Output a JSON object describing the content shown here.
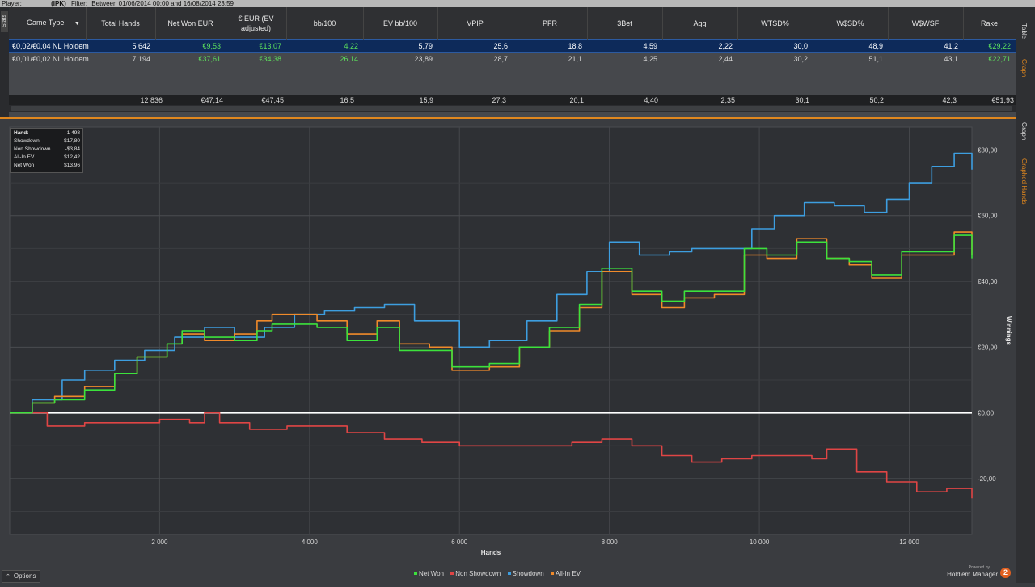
{
  "topbar": {
    "player_label": "Player:",
    "player_value": "(IPK)",
    "filter_label": "Filter:",
    "filter_value": "Between 01/06/2014 00:00 and 16/08/2014 23:59"
  },
  "left_tab": {
    "label": "Stats"
  },
  "right_tabs": {
    "table": "Table",
    "graph_top": "Graph",
    "graph": "Graph",
    "graphed_hands": "Graphed Hands"
  },
  "stats_table": {
    "columns": [
      "Game Type",
      "Total Hands",
      "Net Won EUR",
      "€ EUR (EV adjusted)",
      "bb/100",
      "EV bb/100",
      "VPIP",
      "PFR",
      "3Bet",
      "Agg",
      "WTSD%",
      "W$SD%",
      "W$WSF",
      "Rake"
    ],
    "rows": [
      [
        "€0,02/€0,04 NL Holdem",
        "5 642",
        "€9,53",
        "€13,07",
        "4,22",
        "5,79",
        "25,6",
        "18,8",
        "4,59",
        "2,22",
        "30,0",
        "48,9",
        "41,2",
        "€29,22"
      ],
      [
        "€0,01/€0,02 NL Holdem",
        "7 194",
        "€37,61",
        "€34,38",
        "26,14",
        "23,89",
        "28,7",
        "21,1",
        "4,25",
        "2,44",
        "30,2",
        "51,1",
        "43,1",
        "€22,71"
      ]
    ],
    "totals": [
      "12 836",
      "€47,14",
      "€47,45",
      "16,5",
      "15,9",
      "27,3",
      "20,1",
      "4,40",
      "2,35",
      "30,1",
      "50,2",
      "42,3",
      "€51,93"
    ]
  },
  "tooltip": {
    "rows": [
      {
        "label": "Hand:",
        "value": "1 498"
      },
      {
        "label": "Showdown",
        "value": "$17,80"
      },
      {
        "label": "Non Showdown",
        "value": "-$3,84"
      },
      {
        "label": "All-In EV",
        "value": "$12,42"
      },
      {
        "label": "Net Won",
        "value": "$13,96"
      }
    ]
  },
  "options_button": {
    "label": "Options",
    "icon": "chevron-up-icon"
  },
  "brand": {
    "powered": "Powered by",
    "name": "Hold'em Manager",
    "logo": "2"
  },
  "colors": {
    "net_won": "#3ce23c",
    "non_showdown": "#e04545",
    "showdown": "#3d9ee0",
    "all_in_ev": "#f08a2a",
    "accent": "#e0871e"
  },
  "chart_data": {
    "type": "line",
    "xlabel": "Hands",
    "ylabel": "Winnings",
    "xlim": [
      0,
      12836
    ],
    "ylim": [
      -37,
      87
    ],
    "x_ticks": [
      2000,
      4000,
      6000,
      8000,
      10000,
      12000
    ],
    "x_tick_labels": [
      "2 000",
      "4 000",
      "6 000",
      "8 000",
      "10 000",
      "12 000"
    ],
    "y_ticks": [
      -20,
      0,
      20,
      40,
      60,
      80
    ],
    "y_tick_labels": [
      "-20,00",
      "€0,00",
      "€20,00",
      "€40,00",
      "€60,00",
      "€80,00"
    ],
    "grid": true,
    "legend_position": "bottom-center",
    "series": [
      {
        "name": "Net Won",
        "color": "#3ce23c",
        "x": [
          0,
          300,
          600,
          1000,
          1400,
          1700,
          2100,
          2300,
          2600,
          3000,
          3300,
          3500,
          3800,
          4100,
          4500,
          4900,
          5200,
          5600,
          5900,
          6400,
          6800,
          7200,
          7600,
          7900,
          8300,
          8700,
          9000,
          9400,
          9800,
          10100,
          10500,
          10900,
          11200,
          11500,
          11900,
          12300,
          12600,
          12836
        ],
        "y": [
          0,
          3,
          4,
          7,
          12,
          17,
          21,
          25,
          23,
          22,
          25,
          27,
          27,
          26,
          22,
          26,
          19,
          19,
          14,
          15,
          20,
          26,
          33,
          44,
          37,
          34,
          37,
          37,
          50,
          48,
          52,
          47,
          46,
          42,
          49,
          49,
          54,
          47
        ]
      },
      {
        "name": "Non Showdown",
        "color": "#e04545",
        "x": [
          0,
          500,
          1000,
          1500,
          2000,
          2400,
          2600,
          2800,
          3200,
          3700,
          4100,
          4500,
          5000,
          5500,
          6000,
          6500,
          7000,
          7500,
          7900,
          8300,
          8700,
          9100,
          9500,
          9900,
          10300,
          10700,
          10900,
          11300,
          11700,
          12100,
          12500,
          12836
        ],
        "y": [
          0,
          -4,
          -3,
          -3,
          -2,
          -3,
          0,
          -3,
          -5,
          -4,
          -4,
          -6,
          -8,
          -9,
          -10,
          -10,
          -10,
          -9,
          -8,
          -10,
          -13,
          -15,
          -14,
          -13,
          -13,
          -14,
          -11,
          -18,
          -21,
          -24,
          -23,
          -26
        ]
      },
      {
        "name": "Showdown",
        "color": "#3d9ee0",
        "x": [
          0,
          300,
          700,
          1000,
          1400,
          1800,
          2200,
          2600,
          3000,
          3400,
          3800,
          4200,
          4600,
          5000,
          5400,
          5900,
          6000,
          6400,
          6900,
          7300,
          7700,
          8000,
          8400,
          8800,
          9100,
          9500,
          9900,
          10200,
          10600,
          11000,
          11400,
          11700,
          12000,
          12300,
          12600,
          12836
        ],
        "y": [
          0,
          4,
          10,
          13,
          16,
          19,
          23,
          26,
          23,
          26,
          30,
          31,
          32,
          33,
          28,
          28,
          20,
          22,
          28,
          36,
          43,
          52,
          48,
          49,
          50,
          50,
          56,
          60,
          64,
          63,
          61,
          65,
          70,
          75,
          79,
          74
        ]
      },
      {
        "name": "All-In EV",
        "color": "#f08a2a",
        "x": [
          0,
          300,
          600,
          1000,
          1400,
          1700,
          2100,
          2300,
          2600,
          3000,
          3300,
          3500,
          3800,
          4100,
          4500,
          4900,
          5200,
          5600,
          5900,
          6400,
          6800,
          7200,
          7600,
          7900,
          8300,
          8700,
          9000,
          9400,
          9800,
          10100,
          10500,
          10900,
          11200,
          11500,
          11900,
          12300,
          12600,
          12836
        ],
        "y": [
          0,
          3,
          5,
          8,
          12,
          17,
          21,
          24,
          22,
          24,
          28,
          30,
          30,
          28,
          24,
          28,
          21,
          20,
          13,
          14,
          20,
          25,
          32,
          43,
          36,
          32,
          35,
          36,
          48,
          47,
          53,
          47,
          45,
          41,
          48,
          48,
          55,
          48
        ]
      }
    ]
  }
}
